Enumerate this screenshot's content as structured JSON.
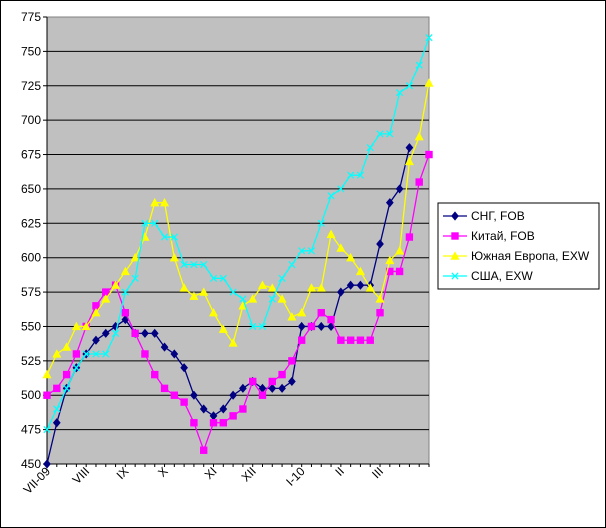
{
  "chart_data": {
    "type": "line",
    "title": "",
    "xlabel": "",
    "ylabel": "",
    "ylim": [
      450,
      775
    ],
    "yticks": [
      450,
      475,
      500,
      525,
      550,
      575,
      600,
      625,
      650,
      675,
      700,
      725,
      750,
      775
    ],
    "x_tick_labels": [
      {
        "index": 0,
        "label": "VII-09"
      },
      {
        "index": 4,
        "label": "VIII"
      },
      {
        "index": 8,
        "label": "IX"
      },
      {
        "index": 12,
        "label": "X"
      },
      {
        "index": 17,
        "label": "XI"
      },
      {
        "index": 21,
        "label": "XII"
      },
      {
        "index": 26,
        "label": "I-10"
      },
      {
        "index": 30,
        "label": "II"
      },
      {
        "index": 34,
        "label": "III"
      }
    ],
    "plot_background": "#c0c0c0",
    "gridlines": "horizontal",
    "legend_position": "right",
    "series": [
      {
        "name": "СНГ, FOB",
        "color": "#000080",
        "marker": "diamond",
        "values": [
          450,
          480,
          505,
          520,
          530,
          540,
          545,
          550,
          555,
          545,
          545,
          545,
          535,
          530,
          520,
          500,
          490,
          485,
          490,
          500,
          505,
          510,
          505,
          505,
          505,
          510,
          550,
          550,
          550,
          550,
          575,
          580,
          580,
          580,
          610,
          640,
          650,
          680
        ]
      },
      {
        "name": "Китай, FOB",
        "color": "#ff00ff",
        "marker": "square",
        "values": [
          500,
          505,
          515,
          530,
          550,
          565,
          575,
          580,
          560,
          545,
          530,
          515,
          505,
          500,
          495,
          480,
          460,
          480,
          480,
          485,
          490,
          510,
          500,
          510,
          515,
          525,
          540,
          550,
          560,
          555,
          540,
          540,
          540,
          540,
          560,
          590,
          590,
          615,
          655,
          675
        ]
      },
      {
        "name": "Южная Европа, EXW",
        "color": "#ffff00",
        "marker": "triangle",
        "values": [
          515,
          530,
          535,
          550,
          550,
          560,
          570,
          580,
          590,
          600,
          615,
          640,
          640,
          600,
          578,
          572,
          575,
          560,
          548,
          538,
          565,
          570,
          580,
          578,
          570,
          557,
          560,
          578,
          578,
          617,
          607,
          600,
          590,
          578,
          570,
          598,
          605,
          670,
          688,
          727
        ]
      },
      {
        "name": "США, EXW",
        "color": "#00ffff",
        "marker": "x",
        "values": [
          475,
          490,
          505,
          520,
          530,
          530,
          530,
          545,
          575,
          585,
          625,
          625,
          615,
          615,
          595,
          595,
          595,
          585,
          585,
          575,
          570,
          550,
          550,
          570,
          585,
          595,
          605,
          605,
          625,
          645,
          650,
          660,
          660,
          680,
          690,
          690,
          720,
          725,
          740,
          760
        ]
      }
    ]
  }
}
